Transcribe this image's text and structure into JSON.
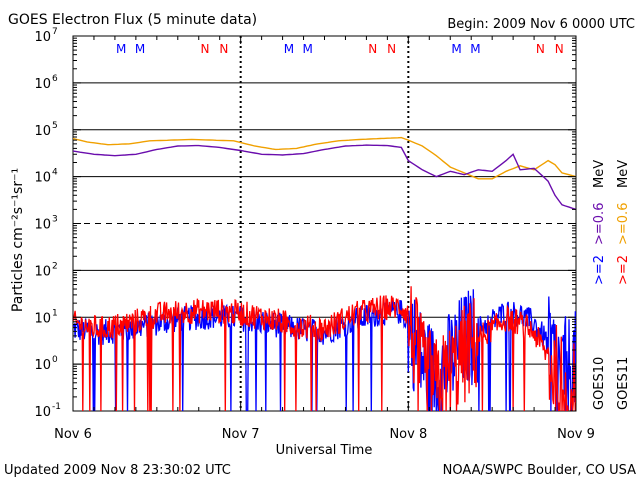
{
  "header": {
    "title": "GOES Electron Flux (5 minute data)",
    "begin": "Begin: 2009 Nov 6 0000 UTC"
  },
  "footer": {
    "updated": "Updated 2009 Nov  8 23:30:02 UTC",
    "source": "NOAA/SWPC Boulder, CO USA"
  },
  "colors": {
    "goes10_high": "#0000ff",
    "goes10_low": "#6a0dad",
    "goes11_high": "#ff0000",
    "goes11_low": "#f0a000",
    "midnight": "#0000ff",
    "noon": "#ff0000"
  },
  "chart_data": {
    "type": "line",
    "xlabel": "Universal Time",
    "ylabel": "Particles cm⁻²s⁻¹sr⁻¹",
    "yscale": "log",
    "ylim": [
      0.1,
      10000000
    ],
    "xlim_hours": [
      0,
      72
    ],
    "x_tick_labels": [
      "Nov 6",
      "Nov 7",
      "Nov 8",
      "Nov 9"
    ],
    "y_tick_labels": [
      {
        "base": "10",
        "exp": "-1",
        "value": 0.1
      },
      {
        "base": "10",
        "exp": "0",
        "value": 1
      },
      {
        "base": "10",
        "exp": "1",
        "value": 10
      },
      {
        "base": "10",
        "exp": "2",
        "value": 100
      },
      {
        "base": "10",
        "exp": "3",
        "value": 1000
      },
      {
        "base": "10",
        "exp": "4",
        "value": 10000
      },
      {
        "base": "10",
        "exp": "5",
        "value": 100000
      },
      {
        "base": "10",
        "exp": "6",
        "value": 1000000
      },
      {
        "base": "10",
        "exp": "7",
        "value": 10000000
      }
    ],
    "dashed_threshold": 1000,
    "local_time_markers": [
      {
        "label": "M",
        "hour": 6.9,
        "kind": "midnight"
      },
      {
        "label": "M",
        "hour": 9.6,
        "kind": "midnight"
      },
      {
        "label": "N",
        "hour": 18.9,
        "kind": "noon"
      },
      {
        "label": "N",
        "hour": 21.6,
        "kind": "noon"
      },
      {
        "label": "M",
        "hour": 30.9,
        "kind": "midnight"
      },
      {
        "label": "M",
        "hour": 33.6,
        "kind": "midnight"
      },
      {
        "label": "N",
        "hour": 42.9,
        "kind": "noon"
      },
      {
        "label": "N",
        "hour": 45.6,
        "kind": "noon"
      },
      {
        "label": "M",
        "hour": 54.9,
        "kind": "midnight"
      },
      {
        "label": "M",
        "hour": 57.6,
        "kind": "midnight"
      },
      {
        "label": "N",
        "hour": 66.9,
        "kind": "noon"
      },
      {
        "label": "N",
        "hour": 69.6,
        "kind": "noon"
      }
    ],
    "legend": [
      {
        "satellite": "GOES10",
        "high": ">=2",
        "low": ">=0.6",
        "unit": "MeV"
      },
      {
        "satellite": "GOES11",
        "high": ">=2",
        "low": ">=0.6",
        "unit": "MeV"
      }
    ],
    "series": [
      {
        "satellite": "GOES10",
        "energy": ">=0.6 MeV",
        "x": [
          0,
          3,
          6,
          9,
          12,
          15,
          18,
          21,
          24,
          27,
          30,
          33,
          36,
          39,
          42,
          45,
          47,
          48,
          50,
          52,
          54,
          56,
          58,
          60,
          62,
          63,
          64,
          66,
          67,
          68,
          69,
          70,
          72
        ],
        "values": [
          35000,
          30000,
          28000,
          30000,
          38000,
          45000,
          46000,
          42000,
          36000,
          30000,
          29000,
          31000,
          38000,
          45000,
          47000,
          46000,
          42000,
          22000,
          14000,
          10000,
          13000,
          11000,
          14000,
          13000,
          22000,
          30000,
          14000,
          15000,
          11000,
          8000,
          4000,
          2500,
          2000
        ]
      },
      {
        "satellite": "GOES11",
        "energy": ">=0.6 MeV",
        "x": [
          0,
          2,
          5,
          8,
          11,
          14,
          17,
          20,
          23,
          26,
          29,
          32,
          35,
          38,
          41,
          44,
          47,
          48,
          50,
          52,
          54,
          56,
          58,
          60,
          62,
          64,
          66,
          68,
          69,
          70,
          71,
          72
        ],
        "values": [
          65000,
          55000,
          48000,
          50000,
          58000,
          60000,
          62000,
          60000,
          58000,
          45000,
          38000,
          40000,
          50000,
          58000,
          62000,
          65000,
          68000,
          60000,
          45000,
          28000,
          16000,
          12000,
          9000,
          9000,
          13000,
          17000,
          14000,
          22000,
          18000,
          12000,
          11000,
          10000
        ]
      },
      {
        "satellite": "GOES10",
        "energy": ">=2 MeV",
        "x": [
          0,
          4,
          8,
          12,
          16,
          20,
          24,
          28,
          32,
          36,
          40,
          44,
          47,
          48,
          50,
          52,
          54,
          56,
          58,
          60,
          62,
          64,
          66,
          68,
          70,
          72
        ],
        "values": [
          6,
          5,
          6,
          8,
          10,
          11,
          10,
          8,
          6,
          5,
          9,
          13,
          14,
          8,
          1.5,
          0.7,
          1.5,
          4,
          6,
          9,
          14,
          12,
          8,
          3,
          1,
          1.5
        ]
      },
      {
        "satellite": "GOES11",
        "energy": ">=2 MeV",
        "x": [
          0,
          4,
          8,
          12,
          16,
          20,
          24,
          28,
          32,
          36,
          40,
          44,
          47,
          48,
          50,
          52,
          54,
          56,
          58,
          60,
          62,
          64,
          66,
          68,
          70,
          72
        ],
        "values": [
          8,
          6,
          8,
          12,
          14,
          15,
          13,
          10,
          7,
          6,
          12,
          17,
          18,
          12,
          1,
          0.4,
          0.8,
          2,
          4,
          6,
          10,
          8,
          5,
          1.5,
          0.5,
          0.3
        ]
      }
    ]
  }
}
